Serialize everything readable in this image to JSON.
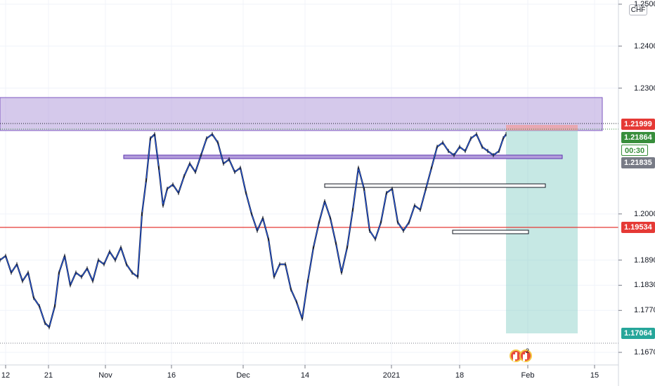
{
  "chart": {
    "currency": "CHF",
    "colors": {
      "supply_zone": "#b39ddb",
      "support_line": "#e53935",
      "long_target": "#80cbc4",
      "long_stop": "#ef9a9a",
      "up_candle": "#2962ff",
      "down_candle": "#131722",
      "current_price_tag": "#388e3c",
      "support_tag": "#e53935",
      "prev_close_tag": "#787b86",
      "high_tag": "#e53935",
      "target_tag": "#26a69a"
    },
    "price_tags": {
      "high": "1.21999",
      "current": "1.21864",
      "countdown": "00:30",
      "prev_close": "1.21835",
      "support": "1.19534",
      "target": "1.17064"
    },
    "events": {
      "icon": "economic-calendar-icon",
      "count": "2"
    }
  },
  "chart_data": {
    "type": "line",
    "ylim": [
      1.164,
      1.251
    ],
    "y_ticks": [
      {
        "label": "1.25000",
        "value": 1.25
      },
      {
        "label": "1.24000",
        "value": 1.24
      },
      {
        "label": "1.23000",
        "value": 1.23
      },
      {
        "label": "1.20000",
        "value": 1.2
      },
      {
        "label": "1.18900",
        "value": 1.189
      },
      {
        "label": "1.18300",
        "value": 1.183
      },
      {
        "label": "1.17700",
        "value": 1.177
      },
      {
        "label": "1.16700",
        "value": 1.167
      }
    ],
    "x_ticks": [
      {
        "label": "12",
        "x": 8
      },
      {
        "label": "21",
        "x": 69
      },
      {
        "label": "Nov",
        "x": 150
      },
      {
        "label": "16",
        "x": 244
      },
      {
        "label": "Dec",
        "x": 346
      },
      {
        "label": "14",
        "x": 434
      },
      {
        "label": "2021",
        "x": 557
      },
      {
        "label": "18",
        "x": 654
      },
      {
        "label": "Feb",
        "x": 751
      },
      {
        "label": "15",
        "x": 846
      }
    ],
    "series": [
      {
        "x": [
          0,
          8,
          16,
          24,
          32,
          40,
          48,
          56,
          64,
          70,
          78,
          84,
          92,
          100,
          108,
          116,
          124,
          132,
          140,
          148,
          156,
          164,
          172,
          180,
          188,
          196,
          202,
          208,
          214,
          220,
          226,
          232,
          238,
          246,
          254,
          262,
          270,
          278,
          286,
          294,
          302,
          310,
          318,
          326,
          334,
          342,
          350,
          358,
          366,
          374,
          382,
          390,
          398,
          406,
          414,
          422,
          430,
          438,
          446,
          454,
          462,
          470,
          478,
          486,
          494,
          502,
          510,
          518,
          526,
          534,
          542,
          550,
          558,
          566,
          574,
          582,
          590,
          598,
          606,
          614,
          622,
          630,
          638,
          646,
          654,
          662,
          670,
          678,
          686,
          694,
          702,
          710,
          716,
          720
        ],
        "values": [
          1.189,
          1.19,
          1.186,
          1.188,
          1.184,
          1.186,
          1.18,
          1.178,
          1.174,
          1.173,
          1.178,
          1.186,
          1.19,
          1.183,
          1.186,
          1.185,
          1.187,
          1.184,
          1.189,
          1.188,
          1.191,
          1.189,
          1.192,
          1.188,
          1.186,
          1.185,
          1.2,
          1.208,
          1.218,
          1.219,
          1.211,
          1.202,
          1.206,
          1.207,
          1.205,
          1.209,
          1.212,
          1.21,
          1.214,
          1.218,
          1.219,
          1.217,
          1.212,
          1.213,
          1.21,
          1.211,
          1.205,
          1.2,
          1.196,
          1.199,
          1.194,
          1.185,
          1.188,
          1.188,
          1.182,
          1.179,
          1.175,
          1.184,
          1.192,
          1.198,
          1.203,
          1.199,
          1.193,
          1.186,
          1.192,
          1.201,
          1.211,
          1.206,
          1.196,
          1.194,
          1.198,
          1.205,
          1.206,
          1.198,
          1.196,
          1.198,
          1.202,
          1.201,
          1.206,
          1.211,
          1.216,
          1.217,
          1.215,
          1.214,
          1.216,
          1.215,
          1.218,
          1.219,
          1.216,
          1.215,
          1.214,
          1.215,
          1.218,
          1.219
        ]
      }
    ]
  }
}
